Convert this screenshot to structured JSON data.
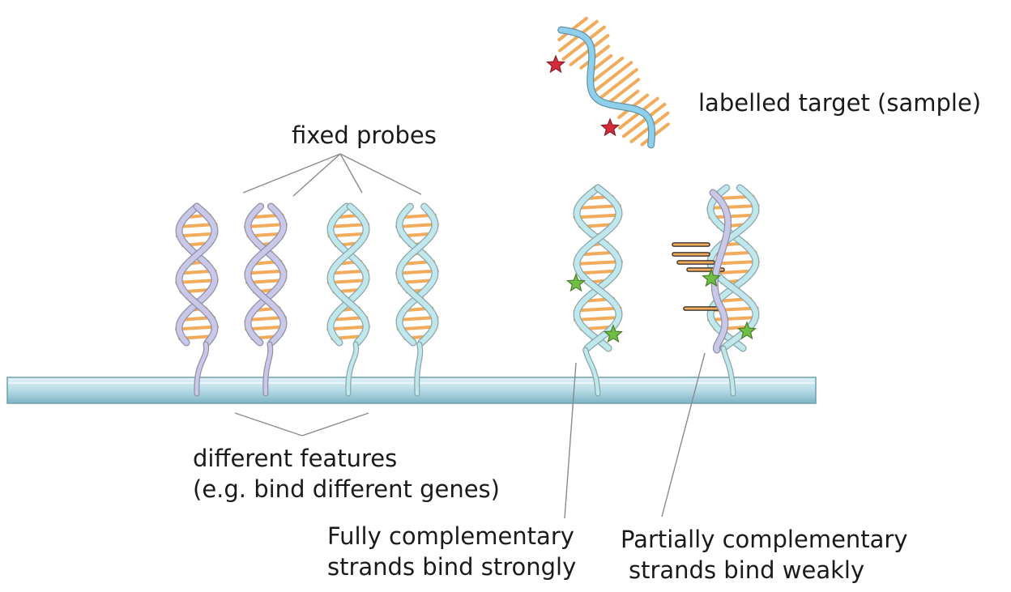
{
  "labels": {
    "fixed_probes": "fixed probes",
    "labelled_target": "labelled target (sample)",
    "features_line1": "different features",
    "features_line2": "(e.g. bind different genes)",
    "full_line1": "Fully complementary",
    "full_line2": "strands bind strongly",
    "partial_line1": "Partially complementary",
    "partial_line2": "strands bind weakly"
  },
  "colors": {
    "purple_strand": "#c9c8e8",
    "teal_strand": "#bfe7ec",
    "base_pair": "#f2ab5b",
    "target_strand": "#8ed0ec",
    "target_label_star": "#d42b3a",
    "bound_label_star": "#6fbf45",
    "slide_top": "#d8eef5",
    "slide_bottom": "#8cbfd1",
    "pointer_line": "#8a8a8a"
  },
  "icons": [
    "dna-probe-icon",
    "dna-target-icon",
    "label-star-icon",
    "glass-slide-icon"
  ]
}
